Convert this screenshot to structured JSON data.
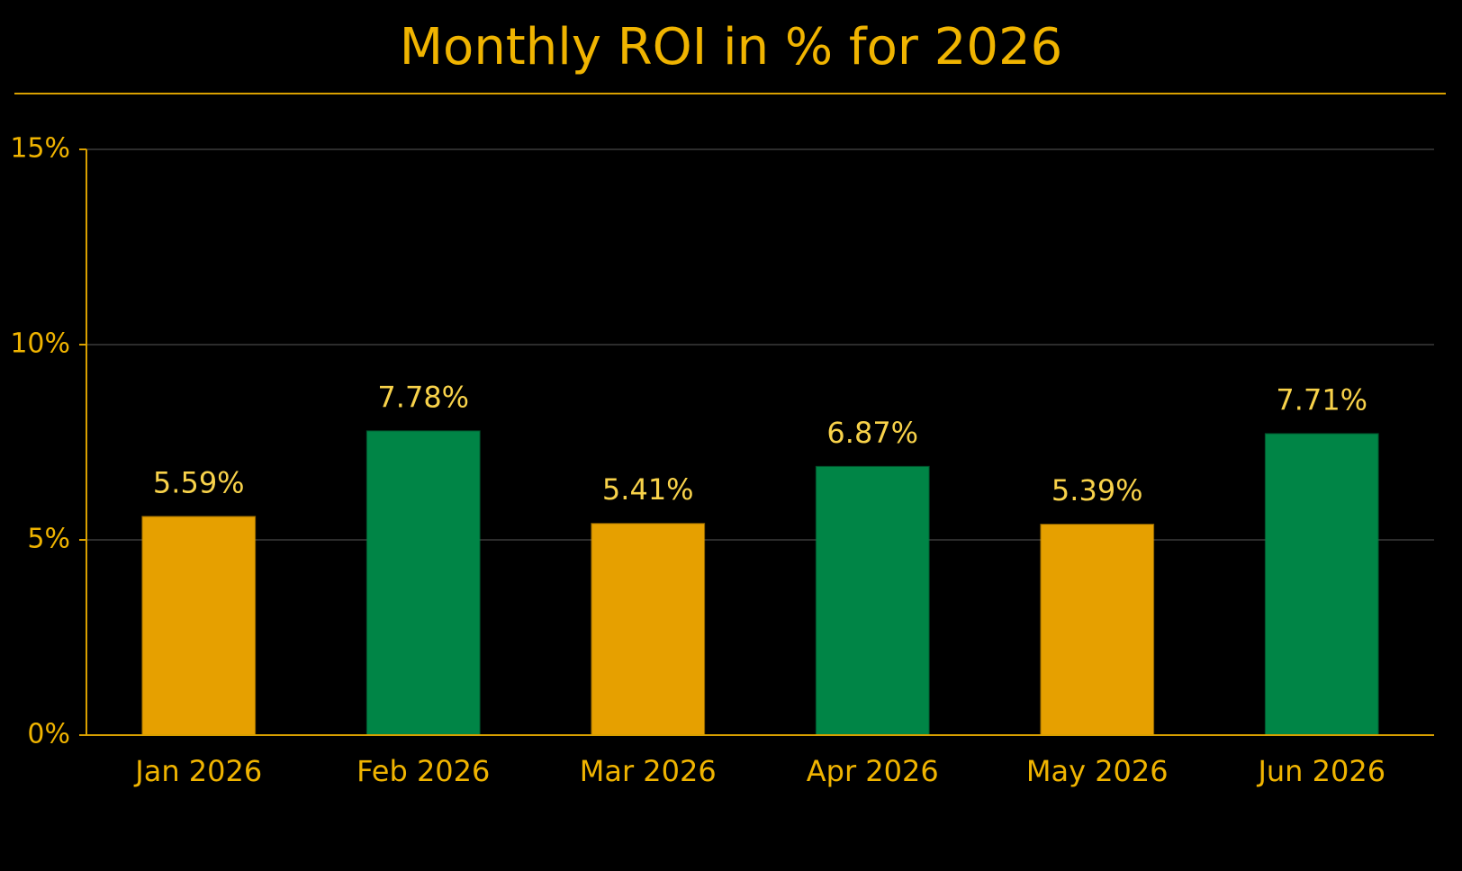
{
  "chart_data": {
    "type": "bar",
    "title": "Monthly ROI in % for 2026",
    "categories": [
      "Jan 2026",
      "Feb 2026",
      "Mar 2026",
      "Apr 2026",
      "May 2026",
      "Jun 2026"
    ],
    "values": [
      5.59,
      7.78,
      5.41,
      6.87,
      5.39,
      7.71
    ],
    "value_labels": [
      "5.59%",
      "7.78%",
      "5.41%",
      "6.87%",
      "5.39%",
      "7.71%"
    ],
    "colors": [
      "#e6a000",
      "#008546",
      "#e6a000",
      "#008546",
      "#e6a000",
      "#008546"
    ],
    "ylim": [
      0,
      15
    ],
    "yticks": [
      {
        "value": 0,
        "label": "0%"
      },
      {
        "value": 5,
        "label": "5%"
      },
      {
        "value": 10,
        "label": "10%"
      },
      {
        "value": 15,
        "label": "15%"
      }
    ],
    "grid": true
  }
}
